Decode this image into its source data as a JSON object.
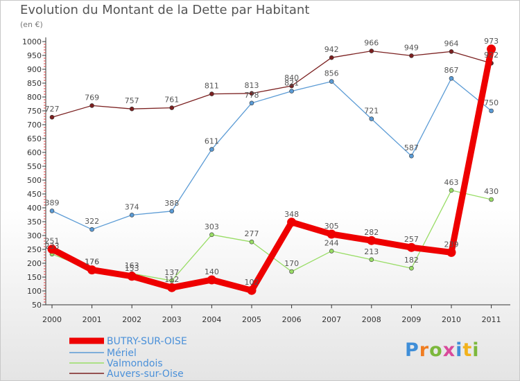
{
  "title": "Evolution du Montant de la Dette par Habitant",
  "unit": "(en €)",
  "logo": {
    "text": "Proxiti",
    "colors": [
      "#3f8ed8",
      "#f07d21",
      "#7cb83c",
      "#d94a9b",
      "#3f8ed8",
      "#f2b21c",
      "#7cb83c"
    ]
  },
  "chart_data": {
    "type": "line",
    "title": "Evolution du Montant de la Dette par Habitant",
    "subtitle": "(en €)",
    "xlabel": "",
    "ylabel": "",
    "x": [
      "2000",
      "2001",
      "2002",
      "2003",
      "2004",
      "2005",
      "2006",
      "2007",
      "2008",
      "2009",
      "2010",
      "2011"
    ],
    "ylim": [
      50,
      1000
    ],
    "yticks": [
      50,
      100,
      150,
      200,
      250,
      300,
      350,
      400,
      450,
      500,
      550,
      600,
      650,
      700,
      750,
      800,
      850,
      900,
      950,
      1000
    ],
    "grid": false,
    "legend_position": "bottom-left",
    "series": [
      {
        "name": "BUTRY-SUR-OISE",
        "color": "#ee0000",
        "values": [
          251,
          176,
          153,
          112,
          140,
          102,
          348,
          305,
          282,
          257,
          239,
          973
        ]
      },
      {
        "name": "Mériel",
        "color": "#5b9bd5",
        "values": [
          389,
          322,
          374,
          388,
          611,
          778,
          821,
          856,
          721,
          587,
          867,
          750
        ]
      },
      {
        "name": "Valmondois",
        "color": "#99dd66",
        "values": [
          233,
          176,
          163,
          137,
          303,
          277,
          170,
          244,
          213,
          182,
          463,
          430
        ]
      },
      {
        "name": "Auvers-sur-Oise",
        "color": "#7b2020",
        "values": [
          727,
          769,
          757,
          761,
          811,
          813,
          840,
          942,
          966,
          949,
          964,
          922
        ]
      }
    ]
  }
}
